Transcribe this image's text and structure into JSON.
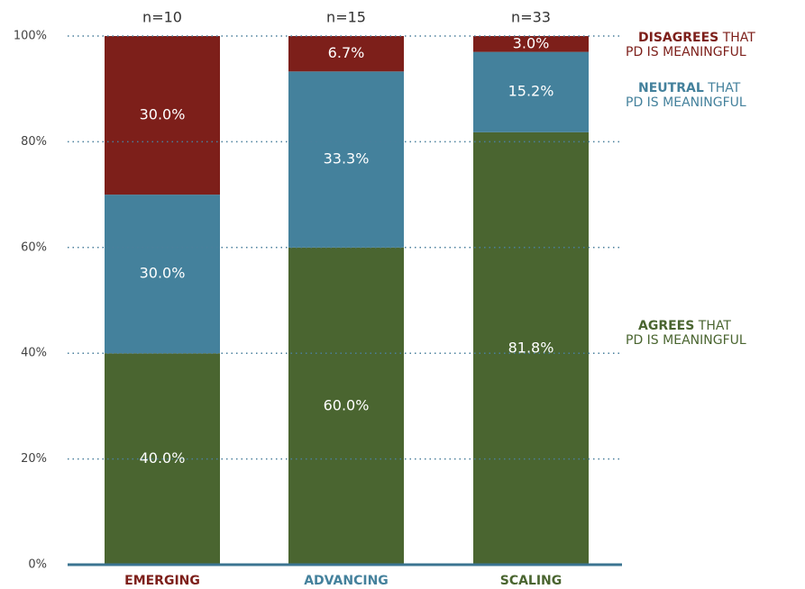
{
  "chart_data": {
    "type": "stacked_bar",
    "categories": [
      "EMERGING",
      "ADVANCING",
      "SCALING"
    ],
    "category_colors": [
      "#7d1f1a",
      "#44819c",
      "#4a6530"
    ],
    "annotations": [
      "n=10",
      "n=15",
      "n=33"
    ],
    "series": [
      {
        "name": "AGREES",
        "name_rest": "THAT",
        "name_line2": "PD IS MEANINGFUL",
        "color": "#4a6530",
        "values": [
          40,
          60,
          81.8
        ],
        "value_labels": [
          "40.0%",
          "60.0%",
          "81.8%"
        ]
      },
      {
        "name": "NEUTRAL",
        "name_rest": "THAT",
        "name_line2": "PD IS MEANINGFUL",
        "color": "#44819c",
        "values": [
          30,
          33.3,
          15.2
        ],
        "value_labels": [
          "30.0%",
          "33.3%",
          "15.2%"
        ]
      },
      {
        "name": "DISAGREES",
        "name_rest": "THAT",
        "name_line2": "PD IS MEANINGFUL",
        "color": "#7d1f1a",
        "values": [
          30,
          6.7,
          3.0
        ],
        "value_labels": [
          "30.0%",
          "6.7%",
          "3.0%"
        ]
      }
    ],
    "ylim": [
      0,
      100
    ],
    "yticks": [
      {
        "value": 0,
        "label": "0%"
      },
      {
        "value": 20,
        "label": "20%"
      },
      {
        "value": 40,
        "label": "40%"
      },
      {
        "value": 60,
        "label": "60%"
      },
      {
        "value": 80,
        "label": "80%"
      },
      {
        "value": 100,
        "label": "100%"
      }
    ],
    "grid": true
  }
}
